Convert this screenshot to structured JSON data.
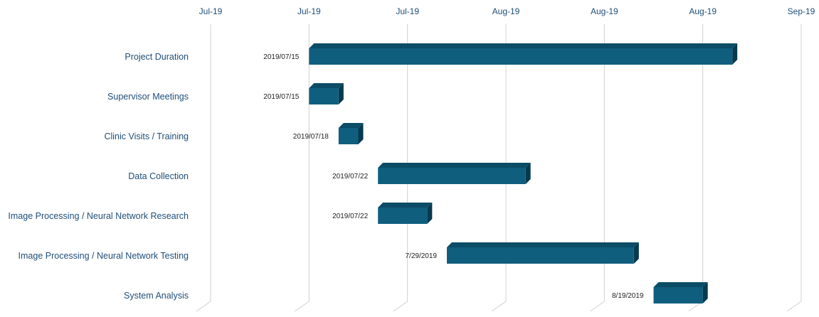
{
  "chart_data": {
    "type": "bar",
    "orientation": "horizontal-gantt",
    "title": "",
    "xlabel": "",
    "ylabel": "",
    "x_tick_labels": [
      "Jul-19",
      "Jul-19",
      "Jul-19",
      "Aug-19",
      "Aug-19",
      "Aug-19",
      "Sep-19"
    ],
    "x_tick_values": [
      "2019-07-05",
      "2019-07-15",
      "2019-07-25",
      "2019-08-04",
      "2019-08-14",
      "2019-08-24",
      "2019-09-03"
    ],
    "xlim": [
      "2019-07-05",
      "2019-09-03"
    ],
    "grid": "vertical",
    "tasks": [
      {
        "name": "Project Duration",
        "start": "2019-07-15",
        "end": "2019-08-27",
        "label": "2019/07/15"
      },
      {
        "name": "Supervisor Meetings",
        "start": "2019-07-15",
        "end": "2019-07-18",
        "label": "2019/07/15"
      },
      {
        "name": "Clinic Visits / Training",
        "start": "2019-07-18",
        "end": "2019-07-20",
        "label": "2019/07/18"
      },
      {
        "name": "Data Collection",
        "start": "2019-07-22",
        "end": "2019-08-06",
        "label": "2019/07/22"
      },
      {
        "name": "Image Processing / Neural Network Research",
        "start": "2019-07-22",
        "end": "2019-07-27",
        "label": "2019/07/22"
      },
      {
        "name": "Image Processing / Neural Network Testing",
        "start": "2019-07-29",
        "end": "2019-08-17",
        "label": "7/29/2019"
      },
      {
        "name": "System Analysis",
        "start": "2019-08-19",
        "end": "2019-08-24",
        "label": "8/19/2019"
      }
    ],
    "colors": {
      "bar_front": "#105e7e",
      "bar_top": "#0b4c66",
      "bar_side": "#073a4f",
      "grid": "#d0d0d0",
      "text": "#1f4e79"
    }
  }
}
